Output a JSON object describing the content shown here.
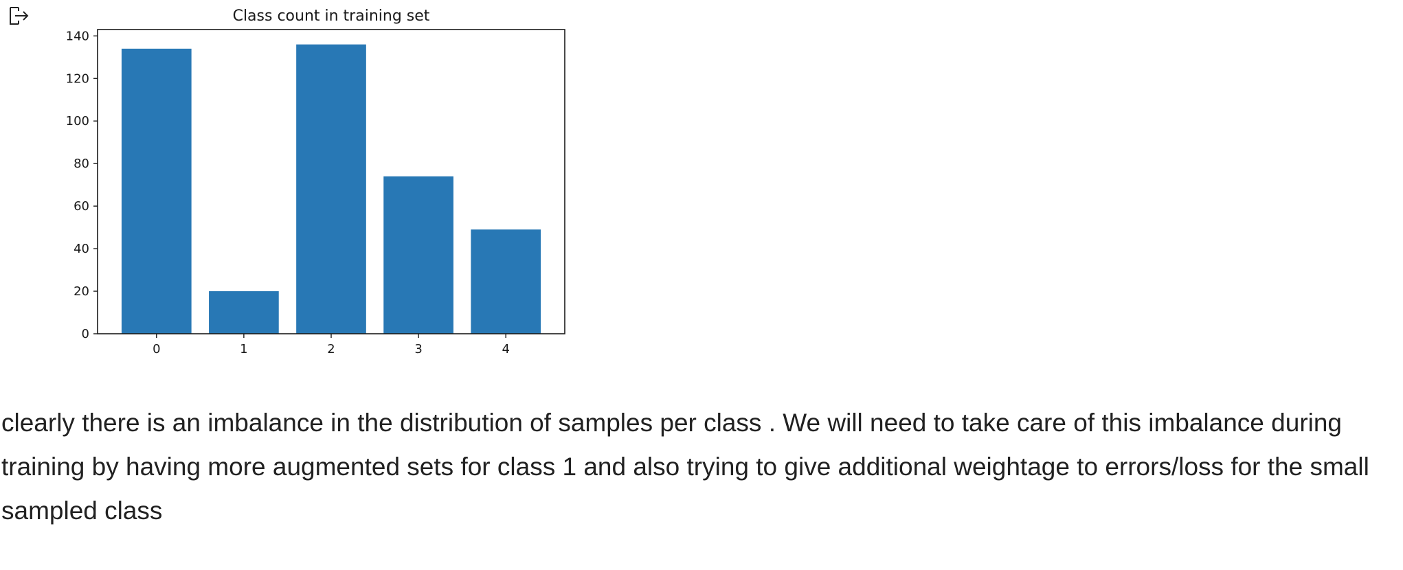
{
  "cell_output": {
    "icon": "output-arrow-icon"
  },
  "chart_data": {
    "type": "bar",
    "title": "Class count in training set",
    "xlabel": "",
    "ylabel": "",
    "categories": [
      "0",
      "1",
      "2",
      "3",
      "4"
    ],
    "values": [
      134,
      20,
      136,
      74,
      49
    ],
    "ylim": [
      0,
      143
    ],
    "yticks": [
      0,
      20,
      40,
      60,
      80,
      100,
      120,
      140
    ],
    "bar_color": "#2878b5",
    "grid": false,
    "legend": "none"
  },
  "markdown": {
    "paragraph": "clearly there is an imbalance in the distribution of samples per class . We will need to take care of this imbalance during training by having more augmented sets for class 1 and also trying to give additional weightage to errors/loss for the small sampled class"
  }
}
